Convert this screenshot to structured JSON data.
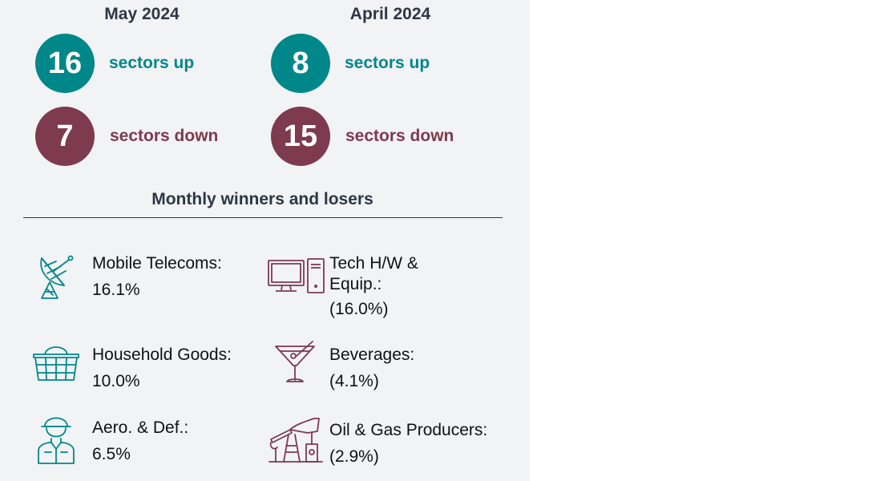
{
  "summary": {
    "may": {
      "title": "May 2024",
      "up_count": "16",
      "up_label": "sectors up",
      "down_count": "7",
      "down_label": "sectors down"
    },
    "april": {
      "title": "April 2024",
      "up_count": "8",
      "up_label": "sectors up",
      "down_count": "15",
      "down_label": "sectors down"
    }
  },
  "section_title": "Monthly winners and losers",
  "winners": [
    {
      "name": "Mobile Telecoms:",
      "value": "16.1%",
      "icon": "satellite-dish-icon"
    },
    {
      "name": "Household Goods:",
      "value": "10.0%",
      "icon": "shopping-basket-icon"
    },
    {
      "name": "Aero. & Def.:",
      "value": "6.5%",
      "icon": "soldier-icon"
    }
  ],
  "losers": [
    {
      "name_line1": "Tech H/W &",
      "name_line2": "Equip.:",
      "value": "(16.0%)",
      "icon": "computer-icon"
    },
    {
      "name": "Beverages:",
      "value": "(4.1%)",
      "icon": "cocktail-glass-icon"
    },
    {
      "name": "Oil & Gas Producers:",
      "value": "(2.9%)",
      "icon": "oil-pump-icon"
    }
  ],
  "colors": {
    "up": "#00878a",
    "down": "#7e3a4f",
    "heading": "#2e3645",
    "panel_bg": "#f2f3f5"
  }
}
